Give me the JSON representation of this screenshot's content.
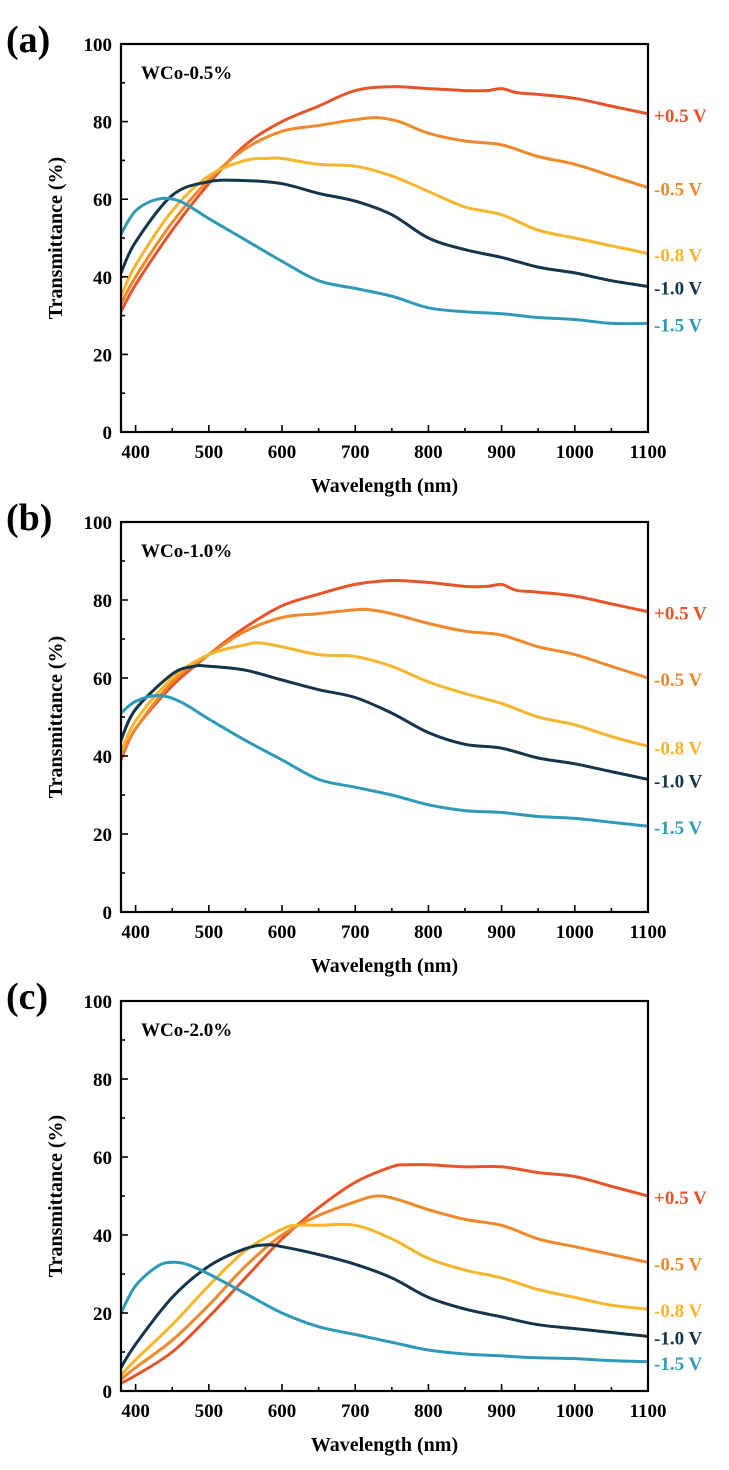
{
  "chart_data": [
    {
      "type": "line",
      "panel_label": "(a)",
      "inset_label": "WCo-0.5%",
      "xlabel": "Wavelength (nm)",
      "ylabel": "Transmittance (%)",
      "xlim": [
        380,
        1100
      ],
      "ylim": [
        0,
        100
      ],
      "xticks": [
        400,
        500,
        600,
        700,
        800,
        900,
        1000,
        1100
      ],
      "yticks": [
        0,
        20,
        40,
        60,
        80,
        100
      ],
      "series": [
        {
          "name": "+0.5 V",
          "color": "#e8542a",
          "x": [
            380,
            400,
            450,
            500,
            550,
            600,
            650,
            700,
            750,
            800,
            850,
            880,
            900,
            920,
            950,
            1000,
            1050,
            1100
          ],
          "y": [
            31,
            38,
            52,
            64,
            74,
            80,
            84,
            88,
            89,
            88.5,
            88,
            88,
            88.5,
            87.5,
            87,
            86,
            84,
            82
          ]
        },
        {
          "name": "-0.5 V",
          "color": "#f0892b",
          "x": [
            380,
            400,
            450,
            500,
            550,
            600,
            650,
            700,
            730,
            760,
            800,
            850,
            900,
            950,
            1000,
            1050,
            1100
          ],
          "y": [
            33,
            40,
            54,
            65,
            73,
            77.5,
            79,
            80.5,
            81,
            80,
            77,
            75,
            74,
            71,
            69,
            66,
            63
          ]
        },
        {
          "name": "-0.8 V",
          "color": "#f7b52b",
          "x": [
            380,
            400,
            450,
            500,
            550,
            580,
            600,
            650,
            700,
            750,
            800,
            850,
            900,
            950,
            1000,
            1050,
            1100
          ],
          "y": [
            35,
            43,
            57,
            66,
            70,
            70.5,
            70.5,
            69,
            68.5,
            66,
            62,
            58,
            56,
            52,
            50,
            48,
            46
          ]
        },
        {
          "name": "-1.0 V",
          "color": "#14354b",
          "x": [
            380,
            400,
            450,
            500,
            550,
            600,
            650,
            700,
            750,
            800,
            850,
            900,
            950,
            1000,
            1050,
            1100
          ],
          "y": [
            41,
            49,
            61,
            64.5,
            64.8,
            64,
            61.5,
            59.5,
            56,
            50,
            47,
            45,
            42.5,
            41,
            39,
            37.5
          ]
        },
        {
          "name": "-1.5 V",
          "color": "#2e9ab8",
          "x": [
            380,
            400,
            430,
            460,
            500,
            550,
            600,
            650,
            700,
            750,
            800,
            850,
            900,
            950,
            1000,
            1050,
            1100
          ],
          "y": [
            51,
            57,
            60,
            59.5,
            55,
            49.5,
            44,
            39,
            37,
            35,
            32,
            31,
            30.5,
            29.5,
            29,
            28,
            28
          ]
        }
      ]
    },
    {
      "type": "line",
      "panel_label": "(b)",
      "inset_label": "WCo-1.0%",
      "xlabel": "Wavelength (nm)",
      "ylabel": "Transmittance (%)",
      "xlim": [
        380,
        1100
      ],
      "ylim": [
        0,
        100
      ],
      "xticks": [
        400,
        500,
        600,
        700,
        800,
        900,
        1000,
        1100
      ],
      "yticks": [
        0,
        20,
        40,
        60,
        80,
        100
      ],
      "series": [
        {
          "name": "+0.5 V",
          "color": "#e8542a",
          "x": [
            380,
            400,
            450,
            500,
            550,
            600,
            650,
            700,
            750,
            800,
            850,
            880,
            900,
            920,
            950,
            1000,
            1050,
            1100
          ],
          "y": [
            39,
            47,
            58,
            66,
            73,
            78.5,
            81.5,
            84,
            85,
            84.5,
            83.5,
            83.5,
            84,
            82.5,
            82,
            81,
            79,
            77
          ]
        },
        {
          "name": "-0.5 V",
          "color": "#f0892b",
          "x": [
            380,
            400,
            450,
            500,
            550,
            600,
            650,
            700,
            720,
            750,
            800,
            850,
            900,
            950,
            1000,
            1050,
            1100
          ],
          "y": [
            40,
            47,
            59,
            66,
            72,
            75.5,
            76.5,
            77.5,
            77.5,
            76.5,
            74,
            72,
            71,
            68,
            66,
            63,
            60
          ]
        },
        {
          "name": "-0.8 V",
          "color": "#f7b52b",
          "x": [
            380,
            400,
            450,
            500,
            550,
            570,
            600,
            650,
            700,
            750,
            800,
            850,
            900,
            950,
            1000,
            1050,
            1100
          ],
          "y": [
            41,
            49,
            60,
            66,
            68.5,
            69,
            68,
            66,
            65.5,
            63,
            59,
            56,
            53.5,
            50,
            48,
            45,
            42.5
          ]
        },
        {
          "name": "-1.0 V",
          "color": "#14354b",
          "x": [
            380,
            400,
            450,
            480,
            500,
            550,
            600,
            650,
            700,
            750,
            800,
            850,
            900,
            950,
            1000,
            1050,
            1100
          ],
          "y": [
            44,
            52,
            61,
            63,
            63,
            62,
            59.5,
            57,
            55,
            51,
            46,
            43,
            42,
            39.5,
            38,
            36,
            34
          ]
        },
        {
          "name": "-1.5 V",
          "color": "#2e9ab8",
          "x": [
            380,
            400,
            430,
            460,
            500,
            550,
            600,
            650,
            700,
            750,
            800,
            850,
            900,
            950,
            1000,
            1050,
            1100
          ],
          "y": [
            51,
            54,
            55.5,
            54,
            49.5,
            44,
            39,
            34,
            32,
            30,
            27.5,
            26,
            25.5,
            24.5,
            24,
            23,
            22
          ]
        }
      ]
    },
    {
      "type": "line",
      "panel_label": "(c)",
      "inset_label": "WCo-2.0%",
      "xlabel": "Wavelength (nm)",
      "ylabel": "Transmittance (%)",
      "xlim": [
        380,
        1100
      ],
      "ylim": [
        0,
        100
      ],
      "xticks": [
        400,
        500,
        600,
        700,
        800,
        900,
        1000,
        1100
      ],
      "yticks": [
        0,
        20,
        40,
        60,
        80,
        100
      ],
      "series": [
        {
          "name": "+0.5 V",
          "color": "#e8542a",
          "x": [
            380,
            400,
            450,
            500,
            550,
            600,
            650,
            700,
            750,
            770,
            800,
            850,
            900,
            950,
            1000,
            1050,
            1100
          ],
          "y": [
            2,
            4,
            10,
            19,
            29,
            39,
            47,
            53.5,
            57.5,
            58,
            58,
            57.5,
            57.5,
            56,
            55,
            52.5,
            50
          ]
        },
        {
          "name": "-0.5 V",
          "color": "#f0892b",
          "x": [
            380,
            400,
            450,
            500,
            550,
            600,
            650,
            700,
            730,
            760,
            800,
            850,
            900,
            950,
            1000,
            1050,
            1100
          ],
          "y": [
            3,
            6,
            13,
            22,
            32,
            40,
            45,
            48.5,
            50,
            49,
            46.5,
            44,
            42.5,
            39,
            37,
            35,
            33
          ]
        },
        {
          "name": "-0.8 V",
          "color": "#f7b52b",
          "x": [
            380,
            400,
            450,
            500,
            550,
            600,
            620,
            650,
            700,
            750,
            800,
            850,
            900,
            950,
            1000,
            1050,
            1100
          ],
          "y": [
            4,
            8,
            17,
            27,
            36,
            41.5,
            42.5,
            42.5,
            42.5,
            39,
            34,
            31,
            29,
            26,
            24,
            22,
            21
          ]
        },
        {
          "name": "-1.0 V",
          "color": "#14354b",
          "x": [
            380,
            400,
            450,
            500,
            550,
            580,
            600,
            650,
            700,
            750,
            800,
            850,
            900,
            950,
            1000,
            1050,
            1100
          ],
          "y": [
            6,
            12,
            24,
            32,
            36.5,
            37.5,
            37,
            35,
            32.5,
            29,
            24,
            21,
            19,
            17,
            16,
            15,
            14
          ]
        },
        {
          "name": "-1.5 V",
          "color": "#2e9ab8",
          "x": [
            380,
            400,
            430,
            450,
            470,
            500,
            550,
            600,
            650,
            700,
            750,
            800,
            850,
            900,
            950,
            1000,
            1050,
            1100
          ],
          "y": [
            20,
            27,
            32,
            33,
            32.5,
            30,
            25,
            20,
            16.5,
            14.5,
            12.5,
            10.5,
            9.5,
            9,
            8.5,
            8.3,
            7.8,
            7.5
          ]
        }
      ]
    }
  ]
}
